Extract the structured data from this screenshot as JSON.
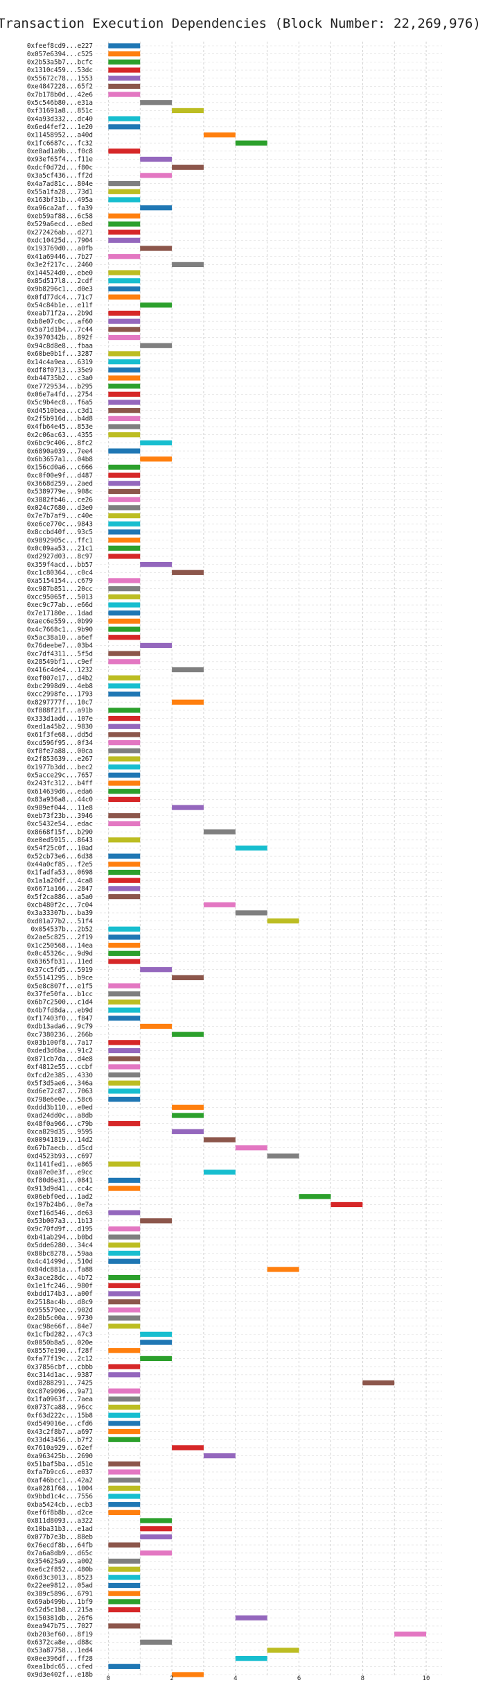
{
  "chart_data": {
    "type": "bar",
    "orientation": "horizontal",
    "title": "Transaction Execution Dependencies (Block Number: 22,269,976)",
    "xlabel": "",
    "ylabel": "",
    "xlim": [
      -0.4,
      10.5
    ],
    "xticks": [
      0,
      2,
      4,
      6,
      8,
      10
    ],
    "grid": true,
    "palette": [
      "#1f77b4",
      "#ff7f0e",
      "#2ca02c",
      "#d62728",
      "#9467bd",
      "#8c564b",
      "#e377c2",
      "#7f7f7f",
      "#bcbd22",
      "#17becf"
    ],
    "transactions": [
      {
        "label": "0xfeef8cd9...e227",
        "start": 0,
        "end": 1
      },
      {
        "label": "0x057e6394...c525",
        "start": 0,
        "end": 1
      },
      {
        "label": "0x2b53a5b7...bcfc",
        "start": 0,
        "end": 1
      },
      {
        "label": "0x1310c459...53dc",
        "start": 0,
        "end": 1
      },
      {
        "label": "0x55672c78...1553",
        "start": 0,
        "end": 1
      },
      {
        "label": "0xe4847228...65f2",
        "start": 0,
        "end": 1
      },
      {
        "label": "0x7b178b0d...42e6",
        "start": 0,
        "end": 1
      },
      {
        "label": "0x5c546b80...e31a",
        "start": 1,
        "end": 2
      },
      {
        "label": "0xf31691a8...851c",
        "start": 2,
        "end": 3
      },
      {
        "label": "0x4a93d332...dc40",
        "start": 0,
        "end": 1
      },
      {
        "label": "0x6ed4fef2...1e20",
        "start": 0,
        "end": 1
      },
      {
        "label": "0x11458952...a40d",
        "start": 3,
        "end": 4
      },
      {
        "label": "0x1fc6687c...fc32",
        "start": 4,
        "end": 5
      },
      {
        "label": "0xe8ad1a9b...f0c8",
        "start": 0,
        "end": 1
      },
      {
        "label": "0x93ef65f4...f11e",
        "start": 1,
        "end": 2
      },
      {
        "label": "0xdcf0d72d...f80c",
        "start": 2,
        "end": 3
      },
      {
        "label": "0x3a5cf436...ff2d",
        "start": 1,
        "end": 2
      },
      {
        "label": "0x4a7ad81c...804e",
        "start": 0,
        "end": 1
      },
      {
        "label": "0x55a1fa28...73d1",
        "start": 0,
        "end": 1
      },
      {
        "label": "0x163bf31b...495a",
        "start": 0,
        "end": 1
      },
      {
        "label": "0xa96ca2af...fa39",
        "start": 1,
        "end": 2
      },
      {
        "label": "0xeb59af88...6c58",
        "start": 0,
        "end": 1
      },
      {
        "label": "0x529a6ecd...e8ed",
        "start": 0,
        "end": 1
      },
      {
        "label": "0x272426ab...d271",
        "start": 0,
        "end": 1
      },
      {
        "label": "0xdc10425d...7904",
        "start": 0,
        "end": 1
      },
      {
        "label": "0x193769d0...a0fb",
        "start": 1,
        "end": 2
      },
      {
        "label": "0x41a69446...7b27",
        "start": 0,
        "end": 1
      },
      {
        "label": "0x3e2f217c...2460",
        "start": 2,
        "end": 3
      },
      {
        "label": "0x144524d0...ebe0",
        "start": 0,
        "end": 1
      },
      {
        "label": "0x85d517l8...2cdf",
        "start": 0,
        "end": 1
      },
      {
        "label": "0x9b8296c1...d0e3",
        "start": 0,
        "end": 1
      },
      {
        "label": "0x0fd77dc4...71c7",
        "start": 0,
        "end": 1
      },
      {
        "label": "0x54c84b1e...e11f",
        "start": 1,
        "end": 2
      },
      {
        "label": "0xeab71f2a...2b9d",
        "start": 0,
        "end": 1
      },
      {
        "label": "0xb8e07c0c...af60",
        "start": 0,
        "end": 1
      },
      {
        "label": "0x5a71d1b4...7c44",
        "start": 0,
        "end": 1
      },
      {
        "label": "0x3970342b...892f",
        "start": 0,
        "end": 1
      },
      {
        "label": "0x94c8d8e8...fbaa",
        "start": 1,
        "end": 2
      },
      {
        "label": "0x60be0b1f...3287",
        "start": 0,
        "end": 1
      },
      {
        "label": "0x14c4a9ea...6319",
        "start": 0,
        "end": 1
      },
      {
        "label": "0xdf8f0713...35e9",
        "start": 0,
        "end": 1
      },
      {
        "label": "0xb44735b2...c3a0",
        "start": 0,
        "end": 1
      },
      {
        "label": "0xe7729534...b295",
        "start": 0,
        "end": 1
      },
      {
        "label": "0x06e7a4fd...2754",
        "start": 0,
        "end": 1
      },
      {
        "label": "0x5c9b4ec8...f6a5",
        "start": 0,
        "end": 1
      },
      {
        "label": "0xd4510bea...c3d1",
        "start": 0,
        "end": 1
      },
      {
        "label": "0x2f5b916d...b4d8",
        "start": 0,
        "end": 1
      },
      {
        "label": "0x4fb64e45...853e",
        "start": 0,
        "end": 1
      },
      {
        "label": "0x2c06ac63...4355",
        "start": 0,
        "end": 1
      },
      {
        "label": "0x6bc9c406...8fc2",
        "start": 1,
        "end": 2
      },
      {
        "label": "0x6890a039...7ee4",
        "start": 0,
        "end": 1
      },
      {
        "label": "0x6b3657a1...04b8",
        "start": 1,
        "end": 2
      },
      {
        "label": "0x156cd0a6...c666",
        "start": 0,
        "end": 1
      },
      {
        "label": "0xc0f00e9f...d487",
        "start": 0,
        "end": 1
      },
      {
        "label": "0x3668d259...2aed",
        "start": 0,
        "end": 1
      },
      {
        "label": "0x5389779e...908c",
        "start": 0,
        "end": 1
      },
      {
        "label": "0x3882fb46...ce26",
        "start": 0,
        "end": 1
      },
      {
        "label": "0x024c7680...d3e0",
        "start": 0,
        "end": 1
      },
      {
        "label": "0x7e7b7af9...c40e",
        "start": 0,
        "end": 1
      },
      {
        "label": "0xe6ce770c...9843",
        "start": 0,
        "end": 1
      },
      {
        "label": "0x8ccbd40f...93c5",
        "start": 0,
        "end": 1
      },
      {
        "label": "0x9892905c...ffc1",
        "start": 0,
        "end": 1
      },
      {
        "label": "0x0c09aa53...21c1",
        "start": 0,
        "end": 1
      },
      {
        "label": "0xd2927d03...8c97",
        "start": 0,
        "end": 1
      },
      {
        "label": "0x359f4acd...bb57",
        "start": 1,
        "end": 2
      },
      {
        "label": "0xc1c80364...c0c4",
        "start": 2,
        "end": 3
      },
      {
        "label": "0xa5154154...c679",
        "start": 0,
        "end": 1
      },
      {
        "label": "0xc987b851...20cc",
        "start": 0,
        "end": 1
      },
      {
        "label": "0xcc95065f...5013",
        "start": 0,
        "end": 1
      },
      {
        "label": "0xec9c77ab...e66d",
        "start": 0,
        "end": 1
      },
      {
        "label": "0x7e17180e...1dad",
        "start": 0,
        "end": 1
      },
      {
        "label": "0xaec6e559...0b99",
        "start": 0,
        "end": 1
      },
      {
        "label": "0x4c7668c1...9b90",
        "start": 0,
        "end": 1
      },
      {
        "label": "0x5ac38a10...a6ef",
        "start": 0,
        "end": 1
      },
      {
        "label": "0x76deebe7...03b4",
        "start": 1,
        "end": 2
      },
      {
        "label": "0xc7df4311...5f5d",
        "start": 0,
        "end": 1
      },
      {
        "label": "0x28549bf1...c9ef",
        "start": 0,
        "end": 1
      },
      {
        "label": "0x416c4de4...1232",
        "start": 2,
        "end": 3
      },
      {
        "label": "0xef007e17...d4b2",
        "start": 0,
        "end": 1
      },
      {
        "label": "0xbc2998d9...4eb8",
        "start": 0,
        "end": 1
      },
      {
        "label": "0xcc2998fe...1793",
        "start": 0,
        "end": 1
      },
      {
        "label": "0x8297777f...10c7",
        "start": 2,
        "end": 3
      },
      {
        "label": "0xf888f21f...a91b",
        "start": 0,
        "end": 1
      },
      {
        "label": "0x333d1add...107e",
        "start": 0,
        "end": 1
      },
      {
        "label": "0xed1a45b2...9830",
        "start": 0,
        "end": 1
      },
      {
        "label": "0x61f3fe68...dd5d",
        "start": 0,
        "end": 1
      },
      {
        "label": "0xcd596f95...0f34",
        "start": 0,
        "end": 1
      },
      {
        "label": "0xf8fe7a88...00ca",
        "start": 0,
        "end": 1
      },
      {
        "label": "0x2f853639...e267",
        "start": 0,
        "end": 1
      },
      {
        "label": "0x1977b3dd...bec2",
        "start": 0,
        "end": 1
      },
      {
        "label": "0x5acce29c...7657",
        "start": 0,
        "end": 1
      },
      {
        "label": "0x243fc312...b4ff",
        "start": 0,
        "end": 1
      },
      {
        "label": "0x614639d6...eda6",
        "start": 0,
        "end": 1
      },
      {
        "label": "0x83a936a8...44c0",
        "start": 0,
        "end": 1
      },
      {
        "label": "0x989ef044...11e8",
        "start": 2,
        "end": 3
      },
      {
        "label": "0xeb73f23b...3946",
        "start": 0,
        "end": 1
      },
      {
        "label": "0xc5432e54...edac",
        "start": 0,
        "end": 1
      },
      {
        "label": "0x8668f15f...b290",
        "start": 3,
        "end": 4
      },
      {
        "label": "0xe0ed5915...8643",
        "start": 0,
        "end": 1
      },
      {
        "label": "0x54f25c0f...10ad",
        "start": 4,
        "end": 5
      },
      {
        "label": "0x52cb73e6...6d38",
        "start": 0,
        "end": 1
      },
      {
        "label": "0x44a0cf85...f2e5",
        "start": 0,
        "end": 1
      },
      {
        "label": "0x1fadfa53...0698",
        "start": 0,
        "end": 1
      },
      {
        "label": "0x1a1a20df...4ca8",
        "start": 0,
        "end": 1
      },
      {
        "label": "0x6671a166...2847",
        "start": 0,
        "end": 1
      },
      {
        "label": "0x5f2ca886...a5a0",
        "start": 0,
        "end": 1
      },
      {
        "label": "0xcb480f2c...7c04",
        "start": 3,
        "end": 4
      },
      {
        "label": "0x3a33307b...ba39",
        "start": 4,
        "end": 5
      },
      {
        "label": "0xd01a77b2...51f4",
        "start": 5,
        "end": 6
      },
      {
        "label": "0x054537b...2b52",
        "start": 0,
        "end": 1
      },
      {
        "label": "0x2ae5c825...2f19",
        "start": 0,
        "end": 1
      },
      {
        "label": "0x1c250568...14ea",
        "start": 0,
        "end": 1
      },
      {
        "label": "0x0c45326c...9d9d",
        "start": 0,
        "end": 1
      },
      {
        "label": "0x6365fb31...11ed",
        "start": 0,
        "end": 1
      },
      {
        "label": "0x37cc5fd5...5919",
        "start": 1,
        "end": 2
      },
      {
        "label": "0x55141295...b9ce",
        "start": 2,
        "end": 3
      },
      {
        "label": "0x5e8c807f...e1f5",
        "start": 0,
        "end": 1
      },
      {
        "label": "0x37fe50fa...b1cc",
        "start": 0,
        "end": 1
      },
      {
        "label": "0x6b7c2500...c1d4",
        "start": 0,
        "end": 1
      },
      {
        "label": "0x4b7fd8da...eb9d",
        "start": 0,
        "end": 1
      },
      {
        "label": "0xf17403f0...f847",
        "start": 0,
        "end": 1
      },
      {
        "label": "0xdb13ada6...9c79",
        "start": 1,
        "end": 2
      },
      {
        "label": "0xc7380236...266b",
        "start": 2,
        "end": 3
      },
      {
        "label": "0x03b100f8...7a17",
        "start": 0,
        "end": 1
      },
      {
        "label": "0xded3d6ba...91c2",
        "start": 0,
        "end": 1
      },
      {
        "label": "0x871cb7da...d4e8",
        "start": 0,
        "end": 1
      },
      {
        "label": "0xf4812e55...ccbf",
        "start": 0,
        "end": 1
      },
      {
        "label": "0xfcd2e385...4330",
        "start": 0,
        "end": 1
      },
      {
        "label": "0x5f3d5ae6...346a",
        "start": 0,
        "end": 1
      },
      {
        "label": "0xd6e72c87...7063",
        "start": 0,
        "end": 1
      },
      {
        "label": "0x798e6e0e...58c6",
        "start": 0,
        "end": 1
      },
      {
        "label": "0xddd3b110...e0ed",
        "start": 2,
        "end": 3
      },
      {
        "label": "0xad24dd0c...a8db",
        "start": 2,
        "end": 3
      },
      {
        "label": "0x48f0a966...c79b",
        "start": 0,
        "end": 1
      },
      {
        "label": "0xca829d35...9595",
        "start": 2,
        "end": 3
      },
      {
        "label": "0x00941819...14d2",
        "start": 3,
        "end": 4
      },
      {
        "label": "0x67b7aecb...d5cd",
        "start": 4,
        "end": 5
      },
      {
        "label": "0xd4523b93...c697",
        "start": 5,
        "end": 6
      },
      {
        "label": "0x1141fed1...e865",
        "start": 0,
        "end": 1
      },
      {
        "label": "0xa07e0e3f...e9cc",
        "start": 3,
        "end": 4
      },
      {
        "label": "0xf80d6e31...0841",
        "start": 0,
        "end": 1
      },
      {
        "label": "0x913d9d41...cc4c",
        "start": 0,
        "end": 1
      },
      {
        "label": "0x06ebf0ed...1ad2",
        "start": 6,
        "end": 7
      },
      {
        "label": "0x197b24b6...0e7a",
        "start": 7,
        "end": 8
      },
      {
        "label": "0xef16d546...de63",
        "start": 0,
        "end": 1
      },
      {
        "label": "0x53b007a3...1b13",
        "start": 1,
        "end": 2
      },
      {
        "label": "0x9c70fd9f...d195",
        "start": 0,
        "end": 1
      },
      {
        "label": "0xb41ab294...b0bd",
        "start": 0,
        "end": 1
      },
      {
        "label": "0x5dde6280...34c4",
        "start": 0,
        "end": 1
      },
      {
        "label": "0x80bc8278...59aa",
        "start": 0,
        "end": 1
      },
      {
        "label": "0x4c41499d...510d",
        "start": 0,
        "end": 1
      },
      {
        "label": "0x84dc881a...fa88",
        "start": 5,
        "end": 6
      },
      {
        "label": "0x3ace28dc...4b72",
        "start": 0,
        "end": 1
      },
      {
        "label": "0x1e1fc246...980f",
        "start": 0,
        "end": 1
      },
      {
        "label": "0xbdd174b3...a00f",
        "start": 0,
        "end": 1
      },
      {
        "label": "0x2518ac4b...d8c9",
        "start": 0,
        "end": 1
      },
      {
        "label": "0x955579ee...902d",
        "start": 0,
        "end": 1
      },
      {
        "label": "0x28b5c00a...9730",
        "start": 0,
        "end": 1
      },
      {
        "label": "0xac98e66f...84e7",
        "start": 0,
        "end": 1
      },
      {
        "label": "0x1cfbd282...47c3",
        "start": 1,
        "end": 2
      },
      {
        "label": "0x0050b8a5...020e",
        "start": 1,
        "end": 2
      },
      {
        "label": "0x8557e190...f28f",
        "start": 0,
        "end": 1
      },
      {
        "label": "0xfa77f19c...2c12",
        "start": 1,
        "end": 2
      },
      {
        "label": "0x37856cbf...cbbb",
        "start": 0,
        "end": 1
      },
      {
        "label": "0xc314d1ac...9387",
        "start": 0,
        "end": 1
      },
      {
        "label": "0xd8288291...7425",
        "start": 8,
        "end": 9
      },
      {
        "label": "0xc87e9096...9a71",
        "start": 0,
        "end": 1
      },
      {
        "label": "0x1fa0963f...7aea",
        "start": 0,
        "end": 1
      },
      {
        "label": "0x0737ca88...96cc",
        "start": 0,
        "end": 1
      },
      {
        "label": "0xf63d222c...15b8",
        "start": 0,
        "end": 1
      },
      {
        "label": "0xd549016e...cfd6",
        "start": 0,
        "end": 1
      },
      {
        "label": "0x43c2f8b7...a697",
        "start": 0,
        "end": 1
      },
      {
        "label": "0x33d43456...b7f2",
        "start": 0,
        "end": 1
      },
      {
        "label": "0x7610a929...62ef",
        "start": 2,
        "end": 3
      },
      {
        "label": "0xa963425b...2690",
        "start": 3,
        "end": 4
      },
      {
        "label": "0x51baf5ba...d51e",
        "start": 0,
        "end": 1
      },
      {
        "label": "0xfa7b9cc6...e037",
        "start": 0,
        "end": 1
      },
      {
        "label": "0xaf46bcc1...42a2",
        "start": 0,
        "end": 1
      },
      {
        "label": "0xa0281f68...1004",
        "start": 0,
        "end": 1
      },
      {
        "label": "0x9bbd1c4c...7556",
        "start": 0,
        "end": 1
      },
      {
        "label": "0xba5424cb...ecb3",
        "start": 0,
        "end": 1
      },
      {
        "label": "0xef6f8b8b...d2ce",
        "start": 0,
        "end": 1
      },
      {
        "label": "0x811d8093...a322",
        "start": 1,
        "end": 2
      },
      {
        "label": "0x10ba31b3...e1ad",
        "start": 1,
        "end": 2
      },
      {
        "label": "0x077b7e3b...88eb",
        "start": 1,
        "end": 2
      },
      {
        "label": "0x76ecdf8b...64fb",
        "start": 0,
        "end": 1
      },
      {
        "label": "0x7a6a8db9...d65c",
        "start": 1,
        "end": 2
      },
      {
        "label": "0x354625a9...a002",
        "start": 0,
        "end": 1
      },
      {
        "label": "0xe6c2f852...480b",
        "start": 0,
        "end": 1
      },
      {
        "label": "0x6d3c3013...8523",
        "start": 0,
        "end": 1
      },
      {
        "label": "0x22ee9812...05ad",
        "start": 0,
        "end": 1
      },
      {
        "label": "0x389c5896...6791",
        "start": 0,
        "end": 1
      },
      {
        "label": "0x69ab499b...1bf9",
        "start": 0,
        "end": 1
      },
      {
        "label": "0x52d5c1b8...215a",
        "start": 0,
        "end": 1
      },
      {
        "label": "0x150381db...26f6",
        "start": 4,
        "end": 5
      },
      {
        "label": "0xea947b75...7027",
        "start": 0,
        "end": 1
      },
      {
        "label": "0xb203ef60...8f19",
        "start": 9,
        "end": 10
      },
      {
        "label": "0x6372ca8e...d88c",
        "start": 1,
        "end": 2
      },
      {
        "label": "0x53a87758...1ed4",
        "start": 5,
        "end": 6
      },
      {
        "label": "0x0ee396df...ff28",
        "start": 4,
        "end": 5
      },
      {
        "label": "0xea1bdc65...cfed",
        "start": 0,
        "end": 1
      },
      {
        "label": "0x9d3e402f...e18b",
        "start": 2,
        "end": 3
      }
    ]
  }
}
